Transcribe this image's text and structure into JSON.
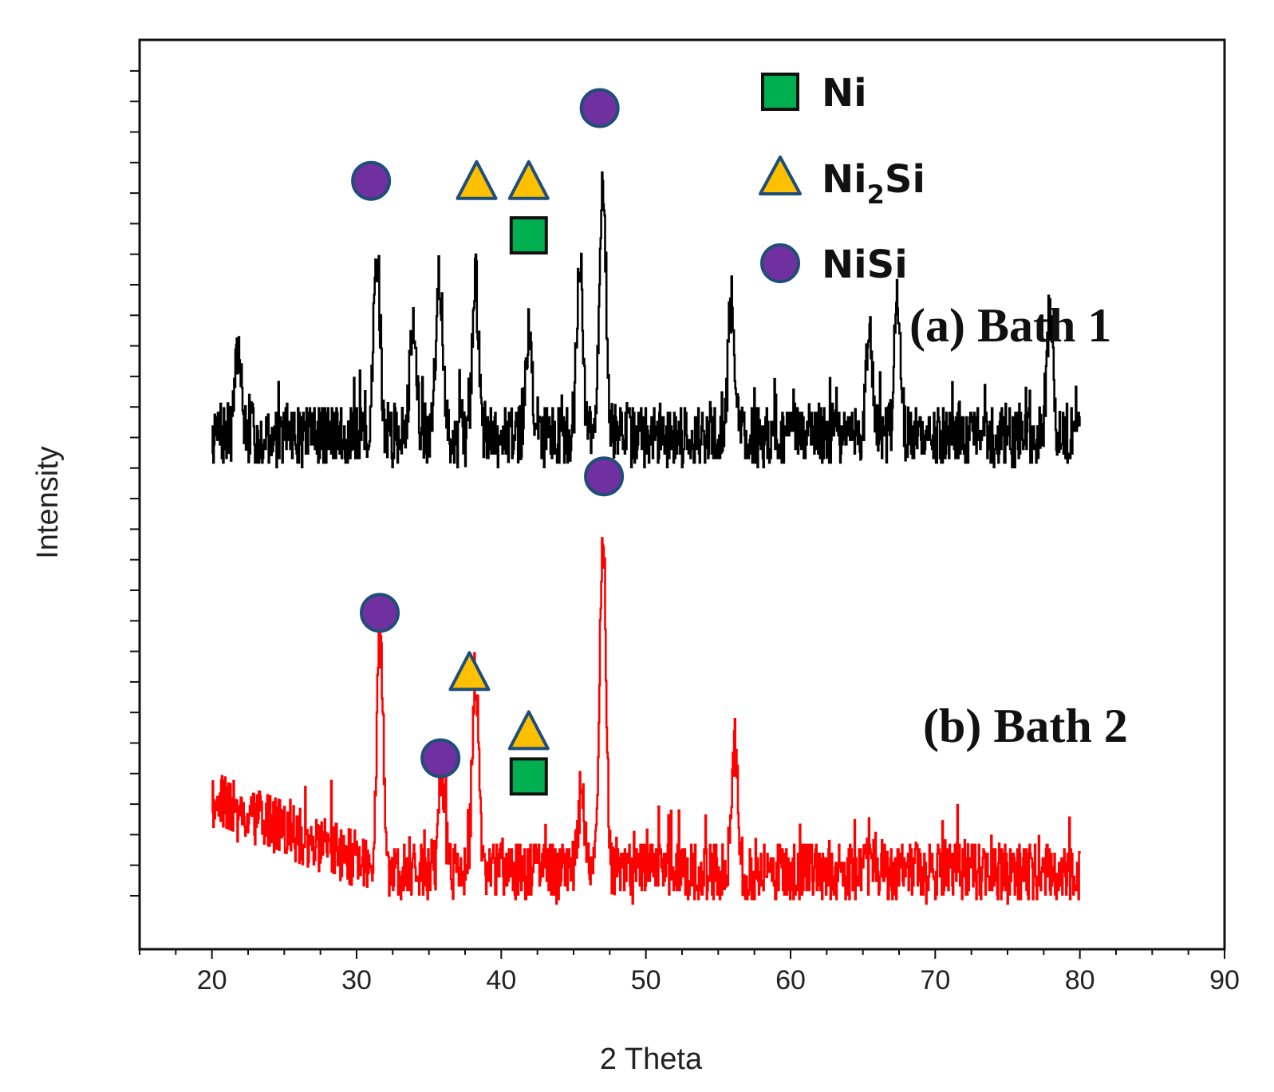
{
  "chart_data": {
    "type": "line",
    "title": "",
    "xlabel": "2 Theta",
    "ylabel": "Intensity",
    "xlim": [
      15,
      90
    ],
    "ylim": [
      0,
      100
    ],
    "x_ticks": [
      20,
      30,
      40,
      50,
      60,
      70,
      80,
      90
    ],
    "y_ticks_labeled": false,
    "grid": false,
    "legend_position": "top-center",
    "legend": [
      {
        "name": "Ni",
        "symbol": "square",
        "fill": "#00b050",
        "stroke": "#111111",
        "label_main": "Ni",
        "label_sub": ""
      },
      {
        "name": "Ni2Si",
        "symbol": "triangle",
        "fill": "#ffc000",
        "stroke": "#1f4e79",
        "label_main": "Ni",
        "label_sub": "2",
        "label_tail": "Si"
      },
      {
        "name": "NiSi",
        "symbol": "circle",
        "fill": "#7030a0",
        "stroke": "#1f4e79",
        "label_main": "NiSi",
        "label_sub": ""
      }
    ],
    "series": [
      {
        "name": "(a) Bath 1",
        "label": "(a) Bath 1",
        "color": "#000000",
        "x_range": [
          20,
          80
        ],
        "baseline": 56.5,
        "noise": 3.4,
        "seed": 7,
        "peaks": [
          {
            "x": 21.8,
            "h": 9
          },
          {
            "x": 31.4,
            "h": 20
          },
          {
            "x": 33.9,
            "h": 13
          },
          {
            "x": 35.7,
            "h": 18
          },
          {
            "x": 38.2,
            "h": 17
          },
          {
            "x": 41.9,
            "h": 11
          },
          {
            "x": 45.4,
            "h": 17
          },
          {
            "x": 47.0,
            "h": 28
          },
          {
            "x": 55.9,
            "h": 15
          },
          {
            "x": 65.4,
            "h": 11
          },
          {
            "x": 67.4,
            "h": 13
          },
          {
            "x": 77.9,
            "h": 13
          }
        ]
      },
      {
        "name": "(b) Bath 2",
        "label": "(b) Bath 2",
        "color": "#ff0000",
        "x_range": [
          20,
          80
        ],
        "baseline": 8.5,
        "noise": 3.3,
        "seed": 19,
        "trend_start": 8.0,
        "peaks": [
          {
            "x": 31.6,
            "h": 26
          },
          {
            "x": 35.9,
            "h": 10
          },
          {
            "x": 38.2,
            "h": 22
          },
          {
            "x": 45.5,
            "h": 9
          },
          {
            "x": 47.0,
            "h": 38
          },
          {
            "x": 56.1,
            "h": 14
          }
        ]
      }
    ],
    "phase_markers": [
      {
        "series": "(a) Bath 1",
        "phase": "NiSi",
        "x": 31.0,
        "y": 84.5
      },
      {
        "series": "(a) Bath 1",
        "phase": "Ni2Si",
        "x": 38.3,
        "y": 84.5
      },
      {
        "series": "(a) Bath 1",
        "phase": "Ni2Si",
        "x": 41.9,
        "y": 84.5
      },
      {
        "series": "(a) Bath 1",
        "phase": "Ni",
        "x": 41.9,
        "y": 78.5
      },
      {
        "series": "(a) Bath 1",
        "phase": "NiSi",
        "x": 46.8,
        "y": 92.5
      },
      {
        "series": "(b) Bath 2",
        "phase": "NiSi",
        "x": 47.1,
        "y": 52.0
      },
      {
        "series": "(b) Bath 2",
        "phase": "NiSi",
        "x": 31.6,
        "y": 37.0
      },
      {
        "series": "(b) Bath 2",
        "phase": "Ni2Si",
        "x": 37.8,
        "y": 30.5
      },
      {
        "series": "(b) Bath 2",
        "phase": "Ni2Si",
        "x": 41.9,
        "y": 24.0
      },
      {
        "series": "(b) Bath 2",
        "phase": "Ni",
        "x": 41.9,
        "y": 19.0
      },
      {
        "series": "(b) Bath 2",
        "phase": "NiSi",
        "x": 35.8,
        "y": 21.0
      }
    ]
  }
}
